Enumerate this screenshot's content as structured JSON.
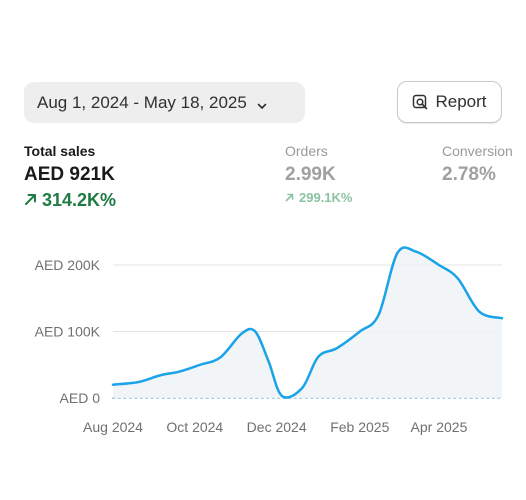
{
  "toolbar": {
    "date_range": "Aug 1, 2024 - May 18, 2025",
    "report_label": "Report"
  },
  "metrics": {
    "total_sales": {
      "label": "Total sales",
      "value": "AED 921K",
      "change": "314.2K%"
    },
    "orders": {
      "label": "Orders",
      "value": "2.99K",
      "change": "299.1K%"
    },
    "conversion": {
      "label": "Conversion",
      "value": "2.78%"
    }
  },
  "colors": {
    "line": "#1aa3e8",
    "positive": "#1e7b43",
    "positive_muted": "#8cc3a2"
  },
  "chart_data": {
    "type": "area",
    "x": [
      "2024-08-01",
      "2024-08-20",
      "2024-09-05",
      "2024-09-20",
      "2024-10-05",
      "2024-10-20",
      "2024-11-05",
      "2024-11-15",
      "2024-11-25",
      "2024-12-05",
      "2024-12-20",
      "2025-01-01",
      "2025-01-15",
      "2025-02-01",
      "2025-02-15",
      "2025-03-01",
      "2025-03-15",
      "2025-04-01",
      "2025-04-15",
      "2025-05-01",
      "2025-05-18"
    ],
    "series": [
      {
        "values": [
          20000,
          24000,
          34000,
          40000,
          50000,
          61000,
          97000,
          100000,
          55000,
          3000,
          15000,
          62000,
          75000,
          100000,
          125000,
          218000,
          220000,
          200000,
          180000,
          130000,
          120000
        ]
      }
    ],
    "xticks": [
      "Aug 2024",
      "Oct 2024",
      "Dec 2024",
      "Feb 2025",
      "Apr 2025"
    ],
    "yticks": [
      "AED 0",
      "AED 100K",
      "AED 200K"
    ],
    "ylim": [
      0,
      200000
    ],
    "grid": true,
    "baseline": "dotted"
  }
}
